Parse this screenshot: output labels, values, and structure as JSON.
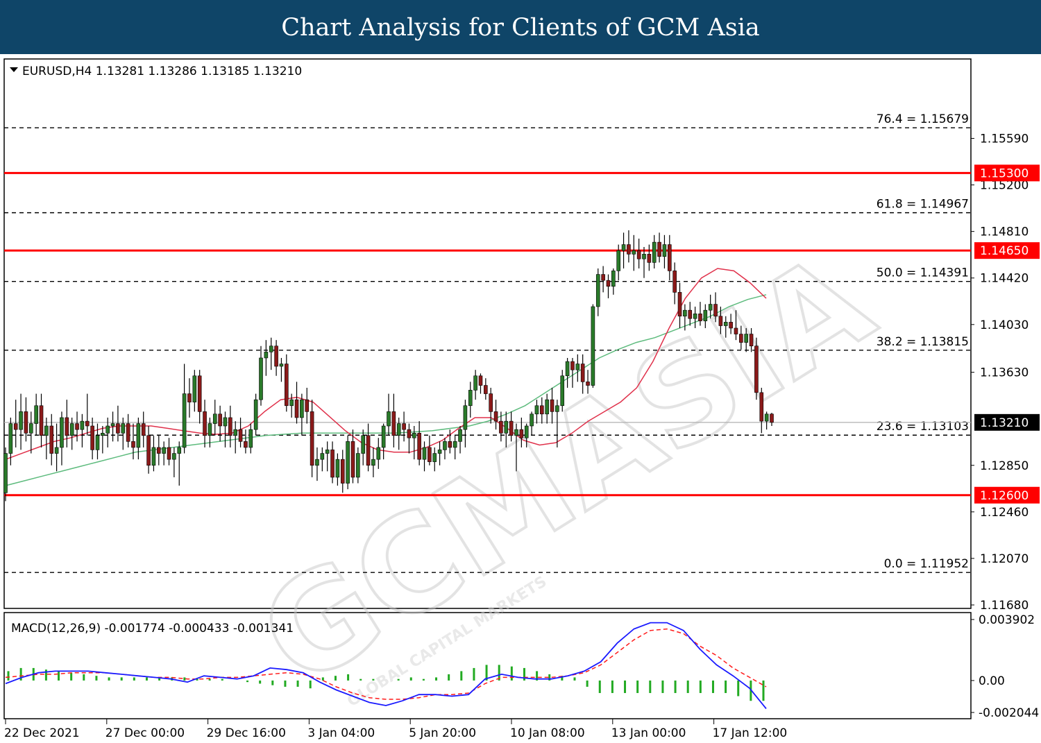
{
  "banner": {
    "title": "Chart Analysis for Clients of GCM Asia"
  },
  "watermark": {
    "main": "GCMASIA",
    "sub": "GLOBAL CAPITAL MARKETS"
  },
  "colors": {
    "banner": "#0f4568",
    "bull": "#2a7a2a",
    "bear": "#8b1a1a",
    "level": "#ff0000",
    "ma_fast": "#e0304a",
    "ma_slow": "#5dbb7d",
    "macd": "#1a1aff",
    "signal": "#ff1a1a",
    "hist": "#22aa22"
  },
  "chart_data": [
    {
      "type": "candlestick",
      "symbol_label": "EURUSD,H4",
      "ohlc_readout": [
        "1.13281",
        "1.13286",
        "1.13185",
        "1.13210"
      ],
      "ylim": [
        1.1168,
        1.1593
      ],
      "y_ticks": [
        "1.15590",
        "1.15200",
        "1.14810",
        "1.14420",
        "1.14030",
        "1.13630",
        "1.12850",
        "1.12460",
        "1.12070",
        "1.11680"
      ],
      "x_ticks": [
        "22 Dec 2021",
        "27 Dec 00:00",
        "29 Dec 16:00",
        "3 Jan 04:00",
        "5 Jan 20:00",
        "10 Jan 08:00",
        "13 Jan 00:00",
        "17 Jan 12:00"
      ],
      "candles": [
        [
          1.1262,
          1.13,
          1.1255,
          1.1295
        ],
        [
          1.1295,
          1.1325,
          1.1285,
          1.132
        ],
        [
          1.132,
          1.134,
          1.13,
          1.1315
        ],
        [
          1.1315,
          1.1345,
          1.1298,
          1.133
        ],
        [
          1.133,
          1.1342,
          1.1305,
          1.1312
        ],
        [
          1.1312,
          1.133,
          1.1295,
          1.132
        ],
        [
          1.132,
          1.1345,
          1.131,
          1.1335
        ],
        [
          1.1335,
          1.1345,
          1.13,
          1.131
        ],
        [
          1.131,
          1.1325,
          1.129,
          1.1318
        ],
        [
          1.1318,
          1.1328,
          1.1285,
          1.1295
        ],
        [
          1.1295,
          1.132,
          1.128,
          1.13
        ],
        [
          1.13,
          1.133,
          1.1285,
          1.1325
        ],
        [
          1.1325,
          1.134,
          1.13,
          1.131
        ],
        [
          1.131,
          1.1325,
          1.1298,
          1.132
        ],
        [
          1.132,
          1.133,
          1.1305,
          1.1315
        ],
        [
          1.1315,
          1.1328,
          1.13,
          1.1322
        ],
        [
          1.1322,
          1.1345,
          1.131,
          1.1318
        ],
        [
          1.1318,
          1.1325,
          1.129,
          1.1298
        ],
        [
          1.1298,
          1.132,
          1.129,
          1.131
        ],
        [
          1.131,
          1.1318,
          1.1295,
          1.1312
        ],
        [
          1.1312,
          1.1325,
          1.13,
          1.1318
        ],
        [
          1.1318,
          1.133,
          1.1305,
          1.132
        ],
        [
          1.132,
          1.1335,
          1.1305,
          1.1312
        ],
        [
          1.1312,
          1.1325,
          1.1298,
          1.132
        ],
        [
          1.132,
          1.1328,
          1.13,
          1.1305
        ],
        [
          1.1305,
          1.132,
          1.129,
          1.13
        ],
        [
          1.13,
          1.1325,
          1.129,
          1.132
        ],
        [
          1.132,
          1.133,
          1.13,
          1.131
        ],
        [
          1.131,
          1.1318,
          1.1278,
          1.1285
        ],
        [
          1.1285,
          1.131,
          1.128,
          1.13
        ],
        [
          1.13,
          1.131,
          1.1285,
          1.1295
        ],
        [
          1.1295,
          1.1305,
          1.1285,
          1.13
        ],
        [
          1.13,
          1.1308,
          1.1285,
          1.129
        ],
        [
          1.129,
          1.13,
          1.1275,
          1.1295
        ],
        [
          1.1295,
          1.1305,
          1.1268,
          1.13
        ],
        [
          1.13,
          1.137,
          1.1295,
          1.1345
        ],
        [
          1.1345,
          1.1358,
          1.1325,
          1.1338
        ],
        [
          1.1338,
          1.1365,
          1.133,
          1.136
        ],
        [
          1.136,
          1.1365,
          1.132,
          1.133
        ],
        [
          1.133,
          1.134,
          1.13,
          1.131
        ],
        [
          1.131,
          1.1325,
          1.13,
          1.132
        ],
        [
          1.132,
          1.134,
          1.131,
          1.1328
        ],
        [
          1.1328,
          1.1335,
          1.1305,
          1.1318
        ],
        [
          1.1318,
          1.133,
          1.13,
          1.1325
        ],
        [
          1.1325,
          1.1335,
          1.13,
          1.131
        ],
        [
          1.131,
          1.1322,
          1.1295,
          1.1315
        ],
        [
          1.1315,
          1.1325,
          1.13,
          1.1305
        ],
        [
          1.1305,
          1.1315,
          1.1295,
          1.13
        ],
        [
          1.13,
          1.132,
          1.1295,
          1.1315
        ],
        [
          1.1315,
          1.1345,
          1.131,
          1.134
        ],
        [
          1.134,
          1.1385,
          1.1335,
          1.1375
        ],
        [
          1.1375,
          1.139,
          1.136,
          1.138
        ],
        [
          1.138,
          1.1392,
          1.1365,
          1.1385
        ],
        [
          1.1385,
          1.139,
          1.136,
          1.1368
        ],
        [
          1.1368,
          1.1375,
          1.1355,
          1.137
        ],
        [
          1.137,
          1.1378,
          1.133,
          1.1335
        ],
        [
          1.1335,
          1.1345,
          1.1325,
          1.134
        ],
        [
          1.134,
          1.1355,
          1.132,
          1.1325
        ],
        [
          1.1325,
          1.1345,
          1.131,
          1.134
        ],
        [
          1.134,
          1.135,
          1.132,
          1.133
        ],
        [
          1.133,
          1.134,
          1.1275,
          1.1285
        ],
        [
          1.1285,
          1.13,
          1.1272,
          1.129
        ],
        [
          1.129,
          1.13,
          1.128,
          1.1295
        ],
        [
          1.1295,
          1.1305,
          1.128,
          1.1298
        ],
        [
          1.1298,
          1.1305,
          1.127,
          1.1275
        ],
        [
          1.1275,
          1.1295,
          1.1268,
          1.129
        ],
        [
          1.129,
          1.1298,
          1.1262,
          1.127
        ],
        [
          1.127,
          1.131,
          1.1265,
          1.1305
        ],
        [
          1.1305,
          1.1315,
          1.127,
          1.1275
        ],
        [
          1.1275,
          1.13,
          1.127,
          1.1295
        ],
        [
          1.1295,
          1.1315,
          1.1285,
          1.131
        ],
        [
          1.131,
          1.132,
          1.128,
          1.1285
        ],
        [
          1.1285,
          1.13,
          1.1275,
          1.129
        ],
        [
          1.129,
          1.1308,
          1.1282,
          1.13
        ],
        [
          1.13,
          1.132,
          1.129,
          1.1318
        ],
        [
          1.1318,
          1.1345,
          1.131,
          1.133
        ],
        [
          1.133,
          1.1345,
          1.13,
          1.131
        ],
        [
          1.131,
          1.1325,
          1.1298,
          1.132
        ],
        [
          1.132,
          1.133,
          1.1305,
          1.1315
        ],
        [
          1.1315,
          1.132,
          1.1295,
          1.1308
        ],
        [
          1.1308,
          1.1318,
          1.129,
          1.1312
        ],
        [
          1.1312,
          1.1322,
          1.1285,
          1.129
        ],
        [
          1.129,
          1.1305,
          1.128,
          1.13
        ],
        [
          1.13,
          1.131,
          1.1285,
          1.1288
        ],
        [
          1.1288,
          1.13,
          1.128,
          1.1295
        ],
        [
          1.1295,
          1.1305,
          1.1285,
          1.1298
        ],
        [
          1.1298,
          1.1308,
          1.129,
          1.1305
        ],
        [
          1.1305,
          1.1315,
          1.1295,
          1.13
        ],
        [
          1.13,
          1.131,
          1.129,
          1.1305
        ],
        [
          1.1305,
          1.1318,
          1.1295,
          1.1315
        ],
        [
          1.1315,
          1.134,
          1.13,
          1.1335
        ],
        [
          1.1335,
          1.1355,
          1.1325,
          1.1348
        ],
        [
          1.1348,
          1.1365,
          1.134,
          1.136
        ],
        [
          1.136,
          1.1362,
          1.1345,
          1.1352
        ],
        [
          1.1352,
          1.1358,
          1.134,
          1.1345
        ],
        [
          1.1345,
          1.135,
          1.132,
          1.133
        ],
        [
          1.133,
          1.134,
          1.1315,
          1.1322
        ],
        [
          1.1322,
          1.133,
          1.1305,
          1.1312
        ],
        [
          1.1312,
          1.133,
          1.13,
          1.1322
        ],
        [
          1.1322,
          1.133,
          1.1305,
          1.131
        ],
        [
          1.131,
          1.132,
          1.128,
          1.1315
        ],
        [
          1.1315,
          1.1325,
          1.13,
          1.1308
        ],
        [
          1.1308,
          1.132,
          1.13,
          1.1318
        ],
        [
          1.1318,
          1.133,
          1.131,
          1.1328
        ],
        [
          1.1328,
          1.134,
          1.132,
          1.1335
        ],
        [
          1.1335,
          1.1342,
          1.132,
          1.1328
        ],
        [
          1.1328,
          1.1345,
          1.132,
          1.134
        ],
        [
          1.134,
          1.135,
          1.132,
          1.133
        ],
        [
          1.133,
          1.134,
          1.13,
          1.1335
        ],
        [
          1.1335,
          1.1365,
          1.133,
          1.136
        ],
        [
          1.136,
          1.1375,
          1.135,
          1.1372
        ],
        [
          1.1372,
          1.1375,
          1.135,
          1.1365
        ],
        [
          1.1365,
          1.1378,
          1.1355,
          1.137
        ],
        [
          1.137,
          1.1378,
          1.1345,
          1.1355
        ],
        [
          1.1355,
          1.1365,
          1.1345,
          1.1352
        ],
        [
          1.1352,
          1.142,
          1.135,
          1.1418
        ],
        [
          1.1418,
          1.145,
          1.141,
          1.1445
        ],
        [
          1.1445,
          1.1452,
          1.143,
          1.144
        ],
        [
          1.144,
          1.1445,
          1.1425,
          1.1435
        ],
        [
          1.1435,
          1.145,
          1.1428,
          1.1448
        ],
        [
          1.1448,
          1.147,
          1.144,
          1.1465
        ],
        [
          1.1465,
          1.148,
          1.145,
          1.147
        ],
        [
          1.147,
          1.1482,
          1.1455,
          1.1462
        ],
        [
          1.1462,
          1.1478,
          1.1448,
          1.1465
        ],
        [
          1.1465,
          1.1475,
          1.145,
          1.1458
        ],
        [
          1.1458,
          1.1468,
          1.1442,
          1.1462
        ],
        [
          1.1462,
          1.147,
          1.1448,
          1.1455
        ],
        [
          1.1455,
          1.1478,
          1.145,
          1.1472
        ],
        [
          1.1472,
          1.148,
          1.1455,
          1.146
        ],
        [
          1.146,
          1.1478,
          1.145,
          1.147
        ],
        [
          1.147,
          1.1478,
          1.144,
          1.1448
        ],
        [
          1.1448,
          1.1455,
          1.142,
          1.143
        ],
        [
          1.143,
          1.1438,
          1.14,
          1.141
        ],
        [
          1.141,
          1.142,
          1.1398,
          1.1415
        ],
        [
          1.1415,
          1.1422,
          1.1402,
          1.1408
        ],
        [
          1.1408,
          1.1418,
          1.14,
          1.1412
        ],
        [
          1.1412,
          1.1422,
          1.1402,
          1.1406
        ],
        [
          1.1406,
          1.142,
          1.14,
          1.1415
        ],
        [
          1.1415,
          1.1428,
          1.1408,
          1.142
        ],
        [
          1.142,
          1.143,
          1.1405,
          1.141
        ],
        [
          1.141,
          1.1418,
          1.1395,
          1.1402
        ],
        [
          1.1402,
          1.141,
          1.1392,
          1.1405
        ],
        [
          1.1405,
          1.1412,
          1.1395,
          1.14
        ],
        [
          1.14,
          1.1415,
          1.139,
          1.1395
        ],
        [
          1.1395,
          1.1402,
          1.1382,
          1.1388
        ],
        [
          1.1388,
          1.14,
          1.138,
          1.1395
        ],
        [
          1.1395,
          1.14,
          1.138,
          1.1385
        ],
        [
          1.1385,
          1.1392,
          1.134,
          1.1346
        ],
        [
          1.1346,
          1.135,
          1.1312,
          1.1322
        ],
        [
          1.1322,
          1.133,
          1.1315,
          1.1328
        ],
        [
          1.1328,
          1.1329,
          1.1318,
          1.1321
        ]
      ],
      "ma_fast_values": [
        1.129,
        1.1295,
        1.13,
        1.1305,
        1.1308,
        1.1312,
        1.1316,
        1.1318,
        1.1318,
        1.1318,
        1.1316,
        1.1314,
        1.1312,
        1.1311,
        1.1312,
        1.1318,
        1.133,
        1.134,
        1.1342,
        1.1338,
        1.1326,
        1.1314,
        1.1304,
        1.1298,
        1.1296,
        1.1296,
        1.13,
        1.1306,
        1.1316,
        1.1325,
        1.1325,
        1.1316,
        1.1306,
        1.1302,
        1.1304,
        1.1312,
        1.1322,
        1.133,
        1.1338,
        1.135,
        1.1372,
        1.14,
        1.1425,
        1.1442,
        1.145,
        1.1448,
        1.1438,
        1.1425
      ],
      "ma_slow_values": [
        1.1268,
        1.1272,
        1.1276,
        1.128,
        1.1284,
        1.1288,
        1.1292,
        1.1296,
        1.1298,
        1.13,
        1.1302,
        1.1304,
        1.1306,
        1.1308,
        1.131,
        1.1311,
        1.1312,
        1.1312,
        1.1312,
        1.1312,
        1.1312,
        1.1312,
        1.1313,
        1.1314,
        1.1316,
        1.1318,
        1.1322,
        1.1328,
        1.1335,
        1.1345,
        1.1355,
        1.1365,
        1.1375,
        1.1382,
        1.1388,
        1.1392,
        1.1398,
        1.1404,
        1.141,
        1.1418,
        1.1424,
        1.1428
      ],
      "horizontal_levels": [
        {
          "value": 1.153,
          "label": "1.15300"
        },
        {
          "value": 1.1465,
          "label": "1.14650"
        },
        {
          "value": 1.126,
          "label": "1.12600"
        }
      ],
      "fibonacci": [
        {
          "value": 1.15679,
          "label": "76.4 = 1.15679"
        },
        {
          "value": 1.14967,
          "label": "61.8 = 1.14967"
        },
        {
          "value": 1.14391,
          "label": "50.0 = 1.14391"
        },
        {
          "value": 1.13815,
          "label": "38.2 = 1.13815"
        },
        {
          "value": 1.13103,
          "label": "23.6 = 1.13103"
        },
        {
          "value": 1.11952,
          "label": "0.0 = 1.11952"
        }
      ],
      "current_price": {
        "value": 1.1321,
        "label": "1.13210"
      }
    },
    {
      "type": "line",
      "title": "MACD(12,26,9) -0.001774 -0.000433 -0.001341",
      "ylim": [
        -0.002044,
        0.003902
      ],
      "y_ticks": [
        "0.003902",
        "0.00",
        "-0.002044"
      ],
      "macd": [
        -0.0002,
        0.0002,
        0.0005,
        0.0006,
        0.0006,
        0.0006,
        0.0005,
        0.0004,
        0.0003,
        0.0002,
        0.0001,
        -0.0001,
        0.0003,
        0.0002,
        0.0001,
        0.0003,
        0.0008,
        0.0007,
        0.0005,
        -0.0001,
        -0.0006,
        -0.001,
        -0.0014,
        -0.0016,
        -0.0013,
        -0.0009,
        -0.0009,
        -0.001,
        -0.0009,
        0.0001,
        0.0004,
        0.0002,
        0.0001,
        0.0001,
        0.0003,
        0.0006,
        0.0012,
        0.0024,
        0.0033,
        0.0037,
        0.0037,
        0.0032,
        0.002,
        0.001,
        0.0003,
        -0.0005,
        -0.0018
      ],
      "signal": [
        0.0002,
        0.0003,
        0.0004,
        0.0004,
        0.0005,
        0.0005,
        0.0005,
        0.0004,
        0.0003,
        0.0002,
        0.0002,
        0.0001,
        0.0001,
        0.0002,
        0.0002,
        0.0003,
        0.0004,
        0.0005,
        0.0004,
        0.0001,
        -0.0004,
        -0.0008,
        -0.0011,
        -0.0012,
        -0.0012,
        -0.0011,
        -0.0009,
        -0.0009,
        -0.0008,
        -0.0002,
        0.0002,
        0.0002,
        0.0002,
        0.0002,
        0.0003,
        0.0005,
        0.001,
        0.0018,
        0.0026,
        0.0032,
        0.0033,
        0.003,
        0.0022,
        0.0016,
        0.0008,
        0.0002,
        -0.0004
      ],
      "histogram": [
        0.0006,
        0.0008,
        0.0008,
        0.0007,
        0.0006,
        0.0005,
        0.0004,
        0.0003,
        0.0002,
        0.0002,
        0.0002,
        0.0002,
        0.0002,
        0.0002,
        0.0002,
        0.0001,
        0.0001,
        0.0001,
        0.0,
        -0.0001,
        -0.0002,
        -0.0003,
        -0.0004,
        -0.0004,
        -0.0005,
        0.0002,
        0.0003,
        0.0004,
        0.0001,
        0.0001,
        0.0,
        0.0001,
        0.0002,
        0.0001,
        0.0002,
        0.0004,
        0.0006,
        0.0008,
        0.001,
        0.001,
        0.0009,
        0.0008,
        0.0006,
        0.0004,
        0.0003,
        0.0002,
        -0.0004,
        -0.0008,
        -0.0008,
        -0.0008,
        -0.0008,
        -0.0008,
        -0.0008,
        -0.0008,
        -0.0008,
        -0.0008,
        -0.0008,
        -0.0008,
        -0.001,
        -0.0013,
        -0.0013
      ]
    }
  ]
}
